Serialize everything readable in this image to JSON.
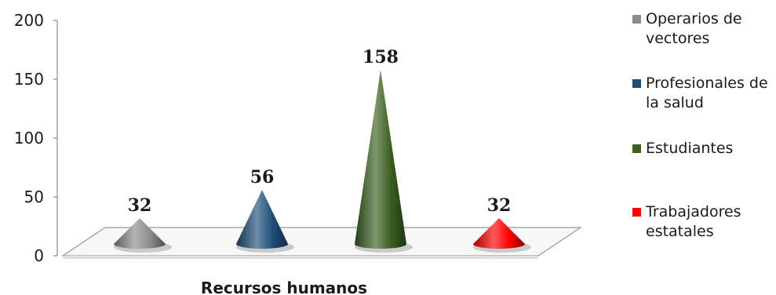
{
  "chart_data": {
    "type": "bar",
    "shape": "cone",
    "categories": [
      "Recursos humanos"
    ],
    "xlabel": "Recursos humanos",
    "ylim": [
      0,
      200
    ],
    "yticks": [
      "0",
      "50",
      "100",
      "150",
      "200"
    ],
    "series": [
      {
        "name": "Operarios de vectores",
        "value": 32,
        "label": "32",
        "color": "#8c8c8c"
      },
      {
        "name": "Profesionales de la salud",
        "value": 56,
        "label": "56",
        "color": "#1f4e79"
      },
      {
        "name": "Estudiantes",
        "value": 158,
        "label": "158",
        "color": "#3a5f1f"
      },
      {
        "name": "Trabajadores estatales",
        "value": 32,
        "label": "32",
        "color": "#ff0000"
      }
    ],
    "legend_position": "right"
  }
}
